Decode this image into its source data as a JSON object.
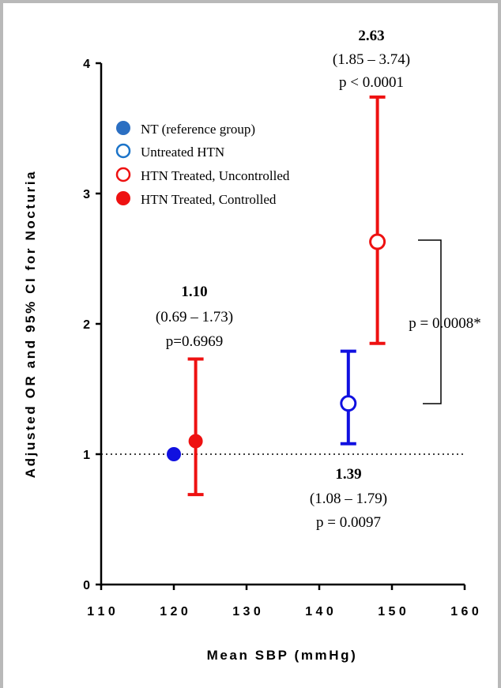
{
  "chart_data": {
    "type": "scatter",
    "title": "",
    "xlabel": "Mean SBP (mmHg)",
    "ylabel": "Adjusted OR and 95% CI for Nocturia",
    "xlim": [
      110,
      160
    ],
    "ylim": [
      0,
      4
    ],
    "x_ticks": [
      "110",
      "120",
      "130",
      "140",
      "150",
      "160"
    ],
    "y_ticks": [
      "0",
      "1",
      "2",
      "3",
      "4"
    ],
    "reference_line": {
      "y": 1,
      "style": "dotted"
    },
    "legend_position": "upper-left",
    "series": [
      {
        "name": "NT (reference group)",
        "x": 120,
        "y": 1.0,
        "marker": "filled-circle",
        "color": "#1010e0"
      },
      {
        "name": "Untreated HTN",
        "x": 144,
        "y": 1.39,
        "ci": [
          1.08,
          1.79
        ],
        "marker": "open-circle",
        "color": "#1010e0"
      },
      {
        "name": "HTN Treated, Uncontrolled",
        "x": 148,
        "y": 2.63,
        "ci": [
          1.85,
          3.74
        ],
        "marker": "open-circle",
        "color": "#ee1111"
      },
      {
        "name": "HTN Treated, Controlled",
        "x": 123,
        "y": 1.1,
        "ci": [
          0.69,
          1.73
        ],
        "marker": "filled-circle",
        "color": "#ee1111"
      }
    ],
    "legend_colors": {
      "nt_legend": "#2b6fc2",
      "untreated_legend": "#1c74c9"
    },
    "annotations": {
      "controlled": {
        "or": "1.10",
        "ci": "(0.69 – 1.73)",
        "p": "p=0.6969"
      },
      "uncontrolled": {
        "or": "2.63",
        "ci": "(1.85 – 3.74)",
        "p": "p < 0.0001"
      },
      "untreated": {
        "or": "1.39",
        "ci": "(1.08 – 1.79)",
        "p": "p = 0.0097"
      },
      "comparison": {
        "p": "p = 0.0008*"
      }
    }
  }
}
